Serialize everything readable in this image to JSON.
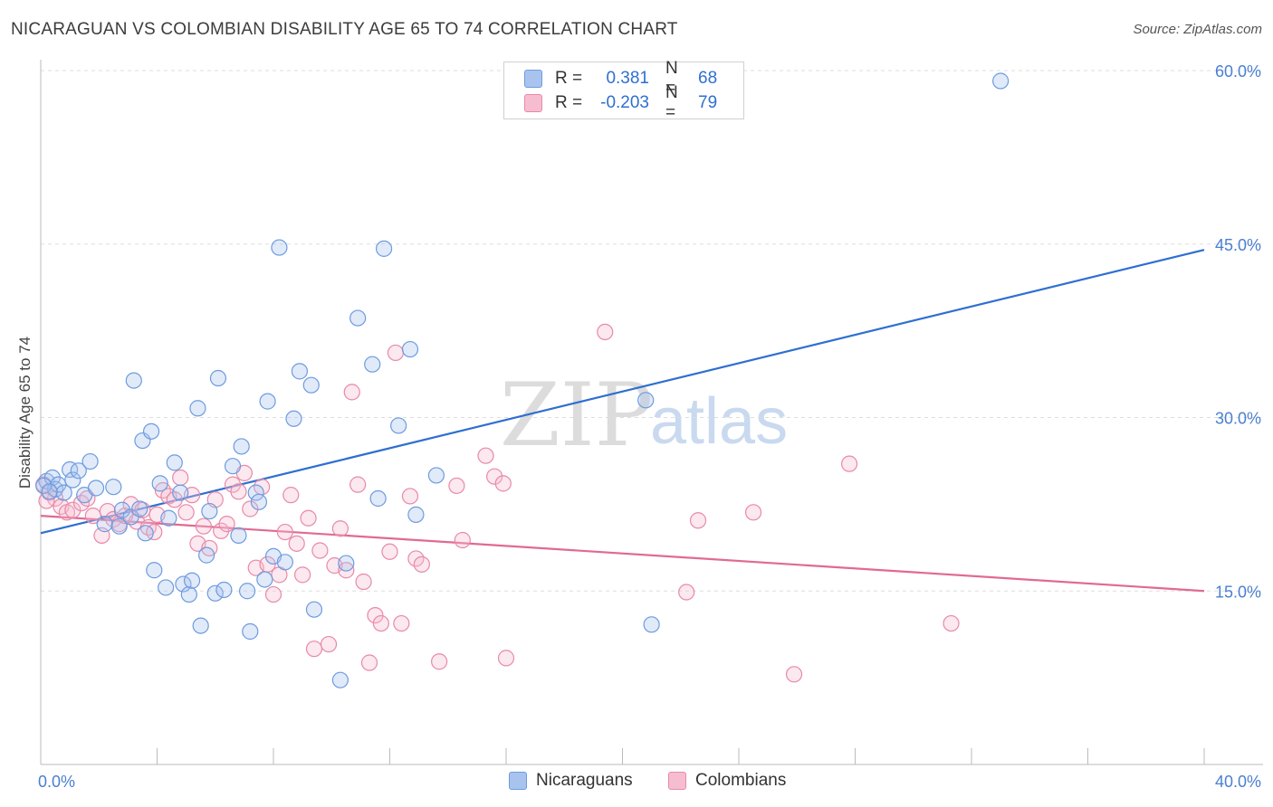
{
  "title": "NICARAGUAN VS COLOMBIAN DISABILITY AGE 65 TO 74 CORRELATION CHART",
  "source": "Source: ZipAtlas.com",
  "watermark": {
    "zip": "ZIP",
    "atlas": "atlas"
  },
  "legend": {
    "r_label": "R =",
    "n_label": "N =",
    "rows": [
      {
        "r": "0.381",
        "n": "68",
        "color": "#a8c4ee",
        "border": "#6d9be0"
      },
      {
        "r": "-0.203",
        "n": "79",
        "color": "#f6bdd0",
        "border": "#e889a8"
      }
    ]
  },
  "bottom_legend": [
    {
      "label": "Nicaraguans",
      "color": "#a8c4ee",
      "border": "#6d9be0"
    },
    {
      "label": "Colombians",
      "color": "#f6bdd0",
      "border": "#e889a8"
    }
  ],
  "chart_data": {
    "type": "scatter",
    "title": "NICARAGUAN VS COLOMBIAN DISABILITY AGE 65 TO 74 CORRELATION CHART",
    "xlabel": "",
    "ylabel": "Disability Age 65 to 74",
    "xlim": [
      0,
      40
    ],
    "ylim": [
      0,
      60
    ],
    "x_tick_labels": [
      "0.0%",
      "40.0%"
    ],
    "y_ticks": [
      15,
      30,
      45,
      60
    ],
    "y_tick_labels": [
      "15.0%",
      "30.0%",
      "45.0%",
      "60.0%"
    ],
    "grid": "horizontal dashed",
    "series": [
      {
        "name": "Nicaraguans",
        "color": "#6d9be0",
        "trend": {
          "x": [
            0,
            40
          ],
          "y": [
            20.0,
            44.5
          ],
          "color": "#2e6fd1"
        },
        "points": [
          [
            0.2,
            24.5
          ],
          [
            0.4,
            24.8
          ],
          [
            0.5,
            23.8
          ],
          [
            0.6,
            24.2
          ],
          [
            0.8,
            23.5
          ],
          [
            1.0,
            25.5
          ],
          [
            1.1,
            24.6
          ],
          [
            1.3,
            25.4
          ],
          [
            1.5,
            23.3
          ],
          [
            1.7,
            26.2
          ],
          [
            1.9,
            23.9
          ],
          [
            2.2,
            20.8
          ],
          [
            2.5,
            24.0
          ],
          [
            2.7,
            20.6
          ],
          [
            2.8,
            22.0
          ],
          [
            3.1,
            21.4
          ],
          [
            3.2,
            33.2
          ],
          [
            3.4,
            22.1
          ],
          [
            3.5,
            28.0
          ],
          [
            3.6,
            20.0
          ],
          [
            3.8,
            28.8
          ],
          [
            3.9,
            16.8
          ],
          [
            4.1,
            24.3
          ],
          [
            4.3,
            15.3
          ],
          [
            4.4,
            21.3
          ],
          [
            4.6,
            26.1
          ],
          [
            4.8,
            23.5
          ],
          [
            4.9,
            15.6
          ],
          [
            5.1,
            14.7
          ],
          [
            5.2,
            15.9
          ],
          [
            5.4,
            30.8
          ],
          [
            5.5,
            12.0
          ],
          [
            5.7,
            18.1
          ],
          [
            5.8,
            21.9
          ],
          [
            6.0,
            14.8
          ],
          [
            6.1,
            33.4
          ],
          [
            6.3,
            15.1
          ],
          [
            6.6,
            25.8
          ],
          [
            6.8,
            19.8
          ],
          [
            6.9,
            27.5
          ],
          [
            7.1,
            15.0
          ],
          [
            7.2,
            11.5
          ],
          [
            7.4,
            23.5
          ],
          [
            7.5,
            22.7
          ],
          [
            7.7,
            16.0
          ],
          [
            7.8,
            31.4
          ],
          [
            8.0,
            18.0
          ],
          [
            8.2,
            44.7
          ],
          [
            8.4,
            17.5
          ],
          [
            8.7,
            29.9
          ],
          [
            8.9,
            34.0
          ],
          [
            9.3,
            32.8
          ],
          [
            9.4,
            13.4
          ],
          [
            10.3,
            7.3
          ],
          [
            10.5,
            17.4
          ],
          [
            10.9,
            38.6
          ],
          [
            11.4,
            34.6
          ],
          [
            11.6,
            23.0
          ],
          [
            11.8,
            44.6
          ],
          [
            12.3,
            29.3
          ],
          [
            12.7,
            35.9
          ],
          [
            12.9,
            21.6
          ],
          [
            13.6,
            25.0
          ],
          [
            20.8,
            31.5
          ],
          [
            21.0,
            12.1
          ],
          [
            33.0,
            59.1
          ],
          [
            0.1,
            24.1
          ],
          [
            0.3,
            23.6
          ]
        ]
      },
      {
        "name": "Colombians",
        "color": "#e889a8",
        "trend": {
          "x": [
            0,
            40
          ],
          "y": [
            21.5,
            15.0
          ],
          "color": "#e06a92"
        },
        "points": [
          [
            0.1,
            24.2
          ],
          [
            0.3,
            23.5
          ],
          [
            0.5,
            23.0
          ],
          [
            0.7,
            22.3
          ],
          [
            0.9,
            21.8
          ],
          [
            1.1,
            22.0
          ],
          [
            1.4,
            22.6
          ],
          [
            1.6,
            23.0
          ],
          [
            1.8,
            21.5
          ],
          [
            2.1,
            19.8
          ],
          [
            2.3,
            21.9
          ],
          [
            2.5,
            21.2
          ],
          [
            2.7,
            20.8
          ],
          [
            2.9,
            21.5
          ],
          [
            3.1,
            22.5
          ],
          [
            3.3,
            21.0
          ],
          [
            3.5,
            22.0
          ],
          [
            3.7,
            20.5
          ],
          [
            3.9,
            20.1
          ],
          [
            4.0,
            21.6
          ],
          [
            4.2,
            23.7
          ],
          [
            4.4,
            23.2
          ],
          [
            4.6,
            22.9
          ],
          [
            4.8,
            24.8
          ],
          [
            5.0,
            21.8
          ],
          [
            5.2,
            23.3
          ],
          [
            5.4,
            19.1
          ],
          [
            5.6,
            20.6
          ],
          [
            5.8,
            18.7
          ],
          [
            6.0,
            22.9
          ],
          [
            6.2,
            20.2
          ],
          [
            6.4,
            20.8
          ],
          [
            6.6,
            24.2
          ],
          [
            6.8,
            23.6
          ],
          [
            7.0,
            25.2
          ],
          [
            7.2,
            22.1
          ],
          [
            7.4,
            17.0
          ],
          [
            7.6,
            24.0
          ],
          [
            7.8,
            17.3
          ],
          [
            8.0,
            14.7
          ],
          [
            8.2,
            16.4
          ],
          [
            8.4,
            20.1
          ],
          [
            8.6,
            23.3
          ],
          [
            8.8,
            19.1
          ],
          [
            9.0,
            16.4
          ],
          [
            9.2,
            21.3
          ],
          [
            9.4,
            10.0
          ],
          [
            9.6,
            18.5
          ],
          [
            9.9,
            10.4
          ],
          [
            10.1,
            17.2
          ],
          [
            10.3,
            20.4
          ],
          [
            10.5,
            16.8
          ],
          [
            10.7,
            32.2
          ],
          [
            10.9,
            24.2
          ],
          [
            11.1,
            15.8
          ],
          [
            11.3,
            8.8
          ],
          [
            11.5,
            12.9
          ],
          [
            11.7,
            12.2
          ],
          [
            12.0,
            18.4
          ],
          [
            12.2,
            35.6
          ],
          [
            12.4,
            12.2
          ],
          [
            12.7,
            23.2
          ],
          [
            12.9,
            17.8
          ],
          [
            13.1,
            17.3
          ],
          [
            13.7,
            8.9
          ],
          [
            14.3,
            24.1
          ],
          [
            14.5,
            19.4
          ],
          [
            15.3,
            26.7
          ],
          [
            15.6,
            24.9
          ],
          [
            15.9,
            24.3
          ],
          [
            16.0,
            9.2
          ],
          [
            19.4,
            37.4
          ],
          [
            22.2,
            14.9
          ],
          [
            22.6,
            21.1
          ],
          [
            24.5,
            21.8
          ],
          [
            25.9,
            7.8
          ],
          [
            27.8,
            26.0
          ],
          [
            31.3,
            12.2
          ],
          [
            0.2,
            22.8
          ]
        ]
      }
    ]
  }
}
